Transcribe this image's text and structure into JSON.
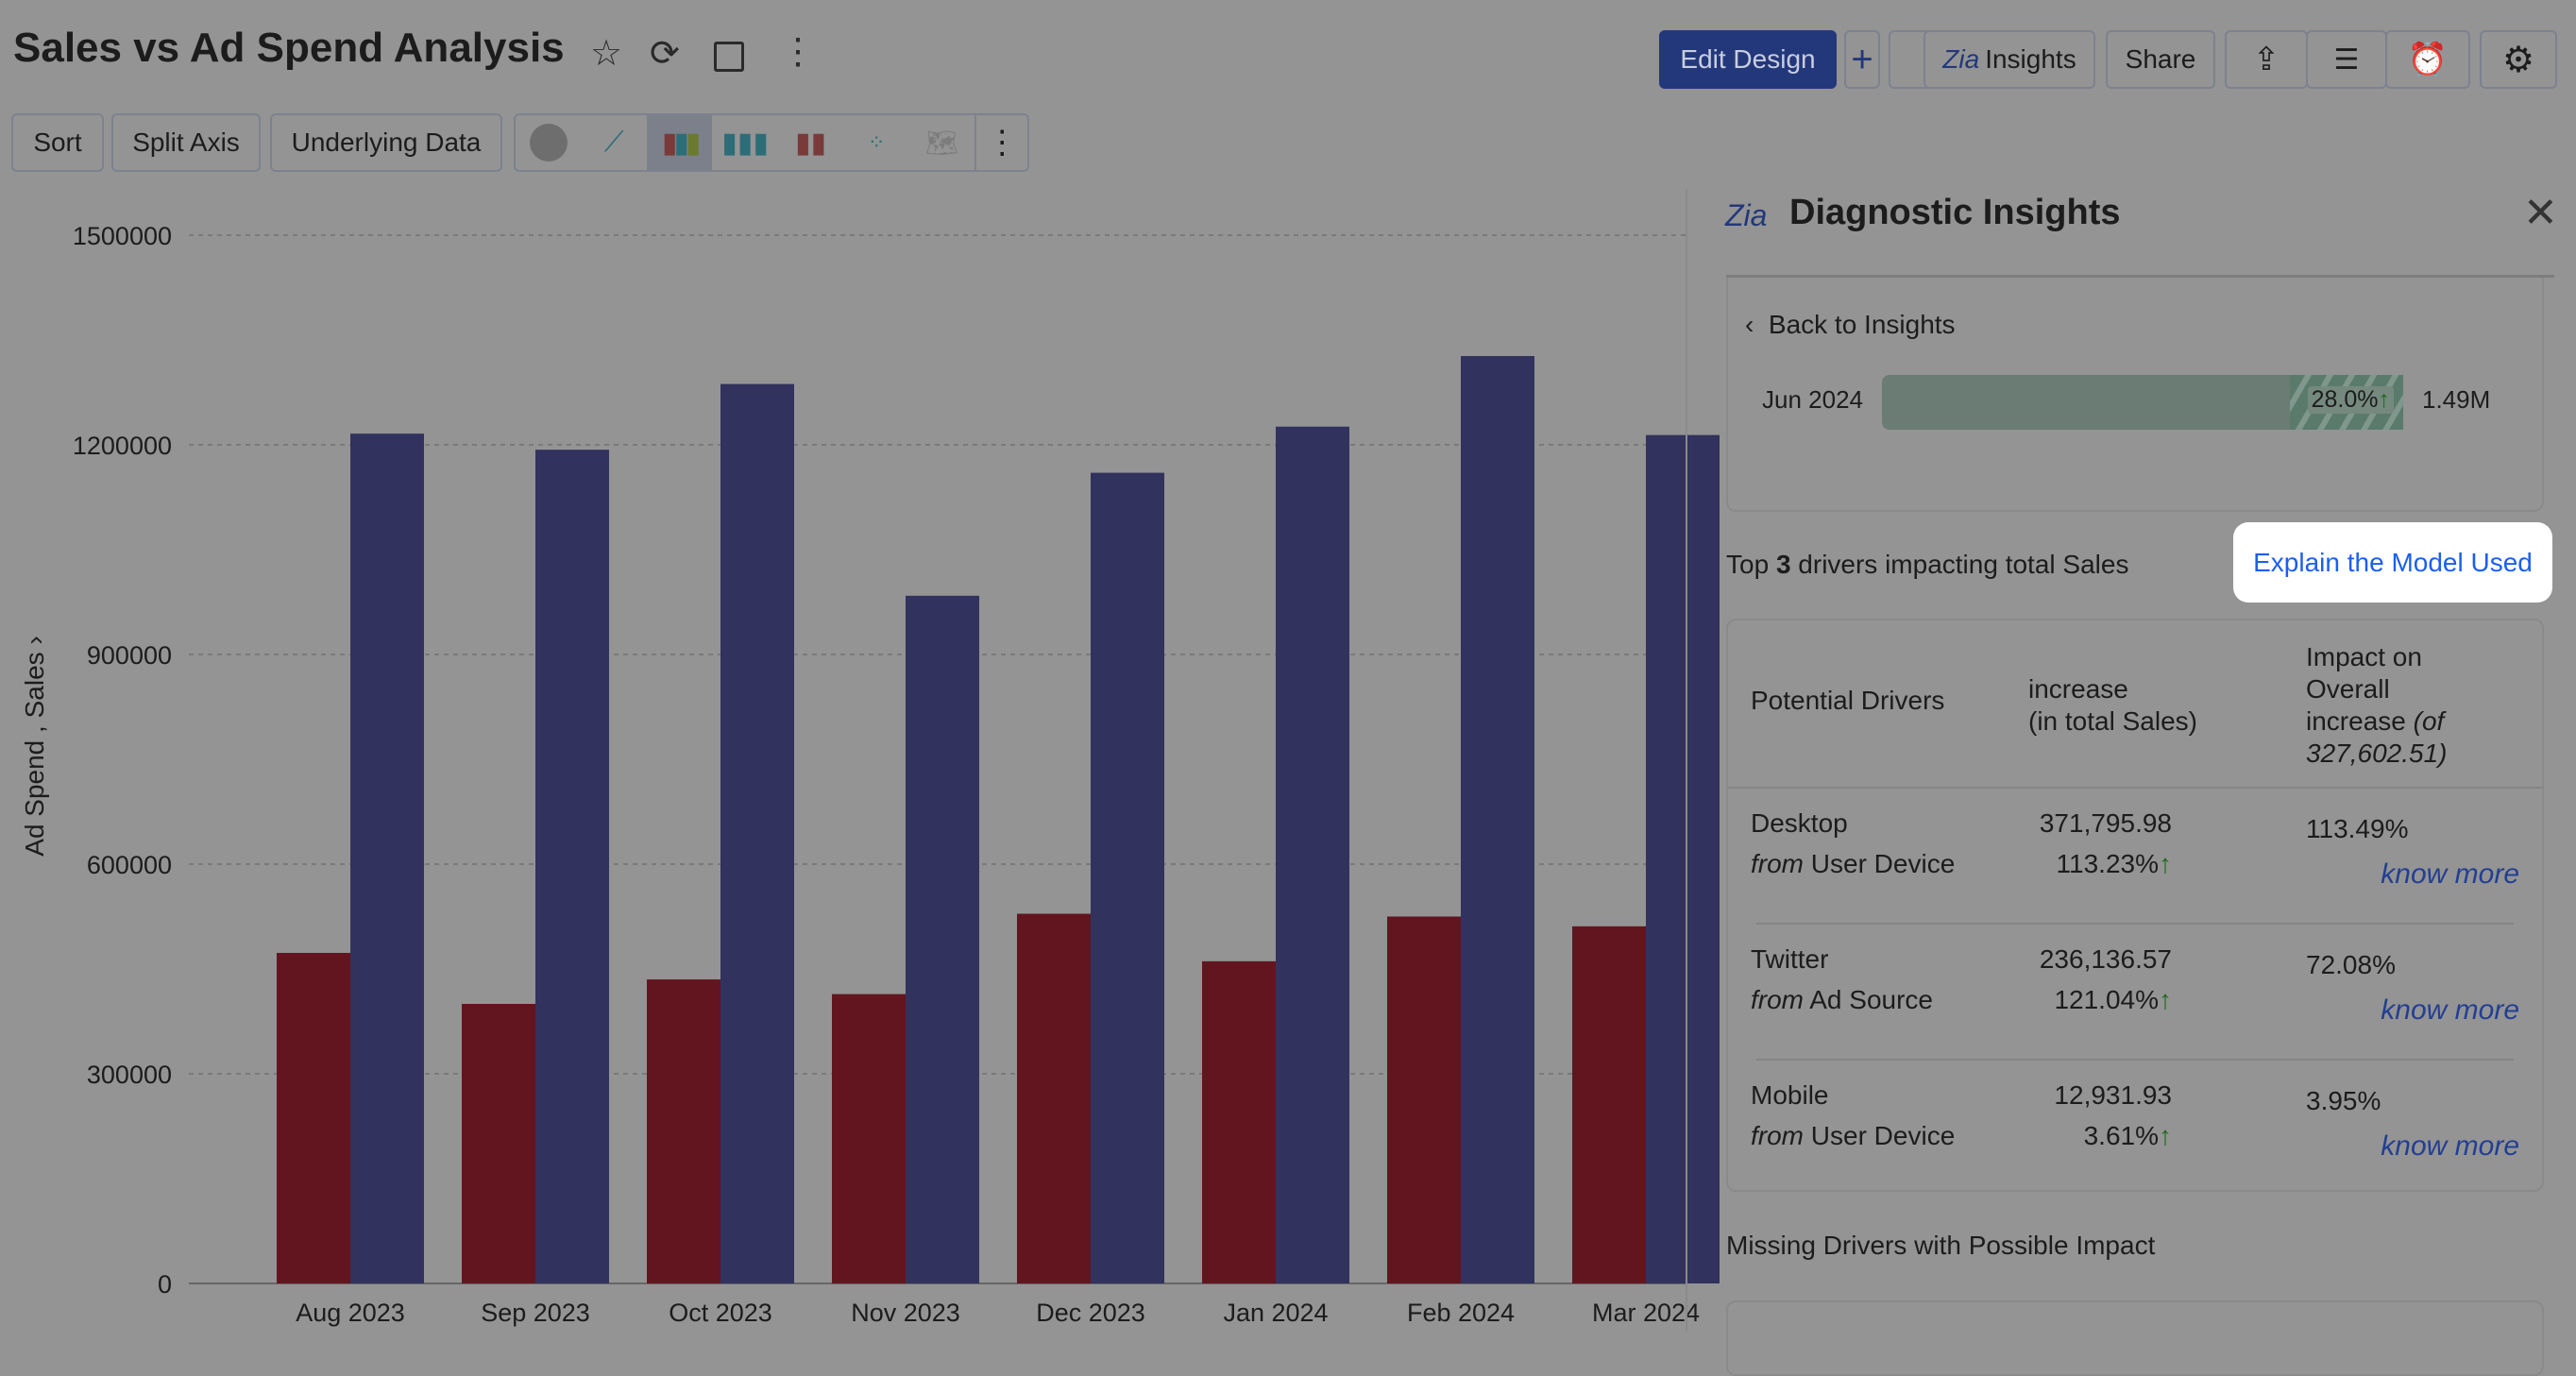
{
  "header": {
    "title": "Sales vs Ad Spend Analysis",
    "icons": [
      "star-icon",
      "refresh-icon",
      "save-icon",
      "more-vertical-icon"
    ],
    "edit_design": "Edit Design",
    "add": "+",
    "insights": "Insights",
    "share": "Share"
  },
  "toolbar": {
    "sort": "Sort",
    "split_axis": "Split Axis",
    "underlying_data": "Underlying Data",
    "chart_types": [
      "pie",
      "line",
      "bar",
      "stacked-bar",
      "combo",
      "scatter",
      "map"
    ],
    "selected_chart_type": "bar"
  },
  "chart_data": {
    "type": "bar",
    "ylabel": "Ad Spend , Sales",
    "ylim": [
      0,
      1500000
    ],
    "yticks": [
      0,
      300000,
      600000,
      900000,
      1200000,
      1500000
    ],
    "categories": [
      "Aug 2023",
      "Sep 2023",
      "Oct 2023",
      "Nov 2023",
      "Dec 2023",
      "Jan 2024",
      "Feb 2024",
      "Mar 2024"
    ],
    "series": [
      {
        "name": "Ad Spend",
        "color": "#62151f",
        "values": [
          473000,
          400000,
          435000,
          414000,
          529000,
          461000,
          525000,
          511000
        ]
      },
      {
        "name": "Sales",
        "color": "#32325e",
        "values": [
          1216000,
          1193000,
          1287000,
          984000,
          1160000,
          1226000,
          1327000,
          1214000
        ]
      }
    ],
    "grid": true
  },
  "panel": {
    "title": "Diagnostic Insights",
    "back": "Back to Insights",
    "period": {
      "label": "Jun 2024",
      "pct": "28.0%",
      "value": "1.49M",
      "change_fraction": 0.28
    },
    "drivers_heading_pre": "Top ",
    "drivers_count": "3",
    "drivers_heading_post": " drivers impacting total Sales",
    "explain": "Explain the Model Used",
    "table": {
      "h1": "Potential Drivers",
      "h2a": "increase",
      "h2b": "(in total Sales)",
      "h3a": "Impact on",
      "h3b": "Overall",
      "h3c": "increase ",
      "h3d": "(of",
      "h3e": "327,602.51)",
      "rows": [
        {
          "driver": "Desktop",
          "from": "from",
          "source": "User Device",
          "amount": "371,795.98",
          "pct": "113.23%",
          "impact": "113.49%",
          "link": "know more"
        },
        {
          "driver": "Twitter",
          "from": "from",
          "source": "Ad Source",
          "amount": "236,136.57",
          "pct": "121.04%",
          "impact": "72.08%",
          "link": "know more"
        },
        {
          "driver": "Mobile",
          "from": "from",
          "source": "User Device",
          "amount": "12,931.93",
          "pct": "3.61%",
          "impact": "3.95%",
          "link": "know more"
        }
      ]
    },
    "missing": "Missing Drivers with Possible Impact"
  }
}
